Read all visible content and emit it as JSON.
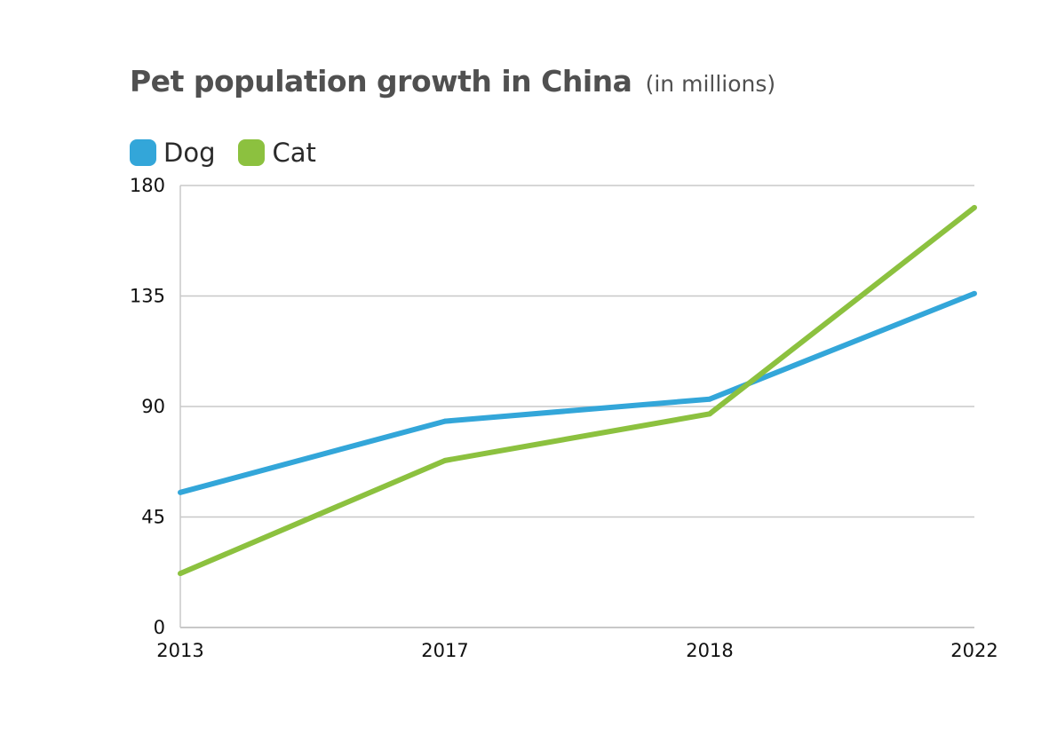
{
  "chart_data": {
    "type": "line",
    "title": "Pet population growth in China",
    "subtitle": "(in millions)",
    "categories": [
      "2013",
      "2017",
      "2018",
      "2022"
    ],
    "series": [
      {
        "name": "Dog",
        "color": "#33a6d9",
        "values": [
          55,
          84,
          93,
          136
        ]
      },
      {
        "name": "Cat",
        "color": "#8cc13f",
        "values": [
          22,
          68,
          87,
          171
        ]
      }
    ],
    "xlabel": "",
    "ylabel": "",
    "ylim": [
      0,
      180
    ],
    "yticks": [
      "0",
      "45",
      "90",
      "135",
      "180"
    ],
    "grid": true,
    "legend_position": "top-left"
  }
}
